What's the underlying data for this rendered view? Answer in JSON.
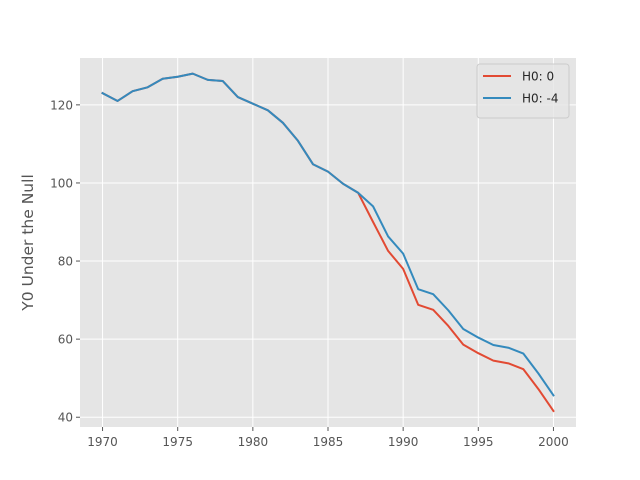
{
  "chart_data": {
    "type": "line",
    "title": "",
    "xlabel": "",
    "ylabel": "Y0 Under the Null",
    "xlim": [
      1968.5,
      2001.5
    ],
    "ylim": [
      37.5,
      132
    ],
    "xticks": [
      1970,
      1975,
      1980,
      1985,
      1990,
      1995,
      2000
    ],
    "yticks": [
      40,
      60,
      80,
      100,
      120
    ],
    "grid": true,
    "legend": "top-right",
    "x": [
      1970,
      1971,
      1972,
      1973,
      1974,
      1975,
      1976,
      1977,
      1978,
      1979,
      1980,
      1981,
      1982,
      1983,
      1984,
      1985,
      1986,
      1987,
      1988,
      1989,
      1990,
      1991,
      1992,
      1993,
      1994,
      1995,
      1996,
      1997,
      1998,
      1999,
      2000
    ],
    "series": [
      {
        "name": "H0: 0",
        "color": "#E24A33",
        "values": [
          123.0,
          121.0,
          123.5,
          124.5,
          126.7,
          127.2,
          128.0,
          126.4,
          126.1,
          122.0,
          120.3,
          118.6,
          115.4,
          110.8,
          104.8,
          102.9,
          99.8,
          97.5,
          90.0,
          82.6,
          78.0,
          68.8,
          67.5,
          63.4,
          58.6,
          56.4,
          54.5,
          53.8,
          52.3,
          47.2,
          41.6
        ]
      },
      {
        "name": "H0: -4",
        "color": "#348ABD",
        "values": [
          123.0,
          121.0,
          123.5,
          124.5,
          126.7,
          127.2,
          128.0,
          126.4,
          126.1,
          122.0,
          120.3,
          118.6,
          115.4,
          110.8,
          104.8,
          102.9,
          99.8,
          97.5,
          94.0,
          86.3,
          81.9,
          72.8,
          71.5,
          67.4,
          62.6,
          60.4,
          58.5,
          57.8,
          56.3,
          51.2,
          45.6
        ]
      }
    ]
  }
}
